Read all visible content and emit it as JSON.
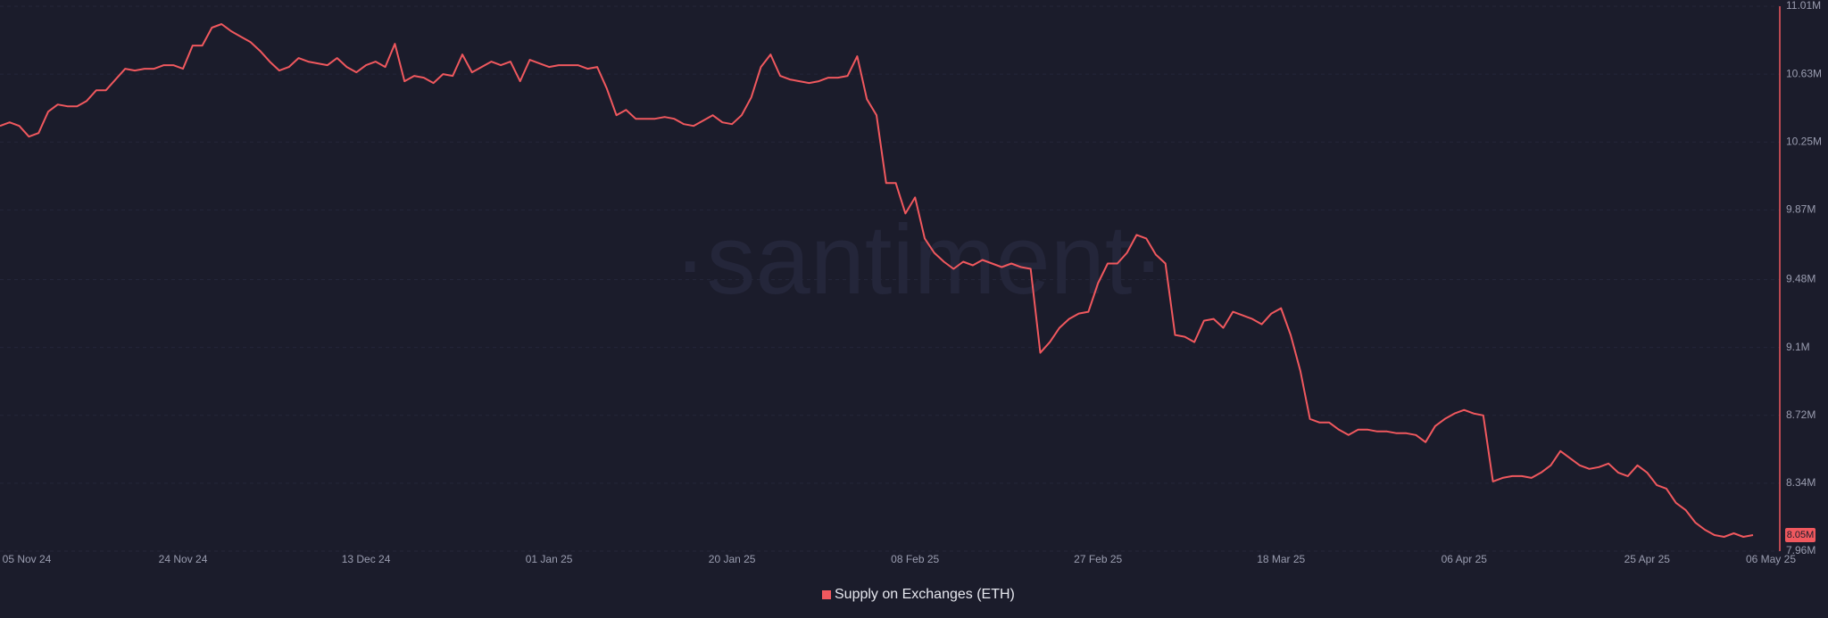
{
  "chart_data": {
    "type": "line",
    "watermark": "·santiment·",
    "categories": [
      "05 Nov 24",
      null,
      null,
      null,
      null,
      null,
      null,
      null,
      null,
      null,
      null,
      null,
      null,
      null,
      null,
      null,
      null,
      null,
      null,
      "24 Nov 24",
      null,
      null,
      null,
      null,
      null,
      null,
      null,
      null,
      null,
      null,
      null,
      null,
      null,
      null,
      null,
      null,
      null,
      null,
      "13 Dec 24",
      null,
      null,
      null,
      null,
      null,
      null,
      null,
      null,
      null,
      null,
      null,
      null,
      null,
      null,
      null,
      null,
      null,
      null,
      "01 Jan 25",
      null,
      null,
      null,
      null,
      null,
      null,
      null,
      null,
      null,
      null,
      null,
      null,
      null,
      null,
      null,
      null,
      null,
      null,
      "20 Jan 25",
      null,
      null,
      null,
      null,
      null,
      null,
      null,
      null,
      null,
      null,
      null,
      null,
      null,
      null,
      null,
      null,
      null,
      null,
      "08 Feb 25",
      null,
      null,
      null,
      null,
      null,
      null,
      null,
      null,
      null,
      null,
      null,
      null,
      null,
      null,
      null,
      null,
      null,
      null,
      "27 Feb 25",
      null,
      null,
      null,
      null,
      null,
      null,
      null,
      null,
      null,
      null,
      null,
      null,
      null,
      null,
      null,
      null,
      null,
      null,
      "18 Mar 25",
      null,
      null,
      null,
      null,
      null,
      null,
      null,
      null,
      null,
      null,
      null,
      null,
      null,
      null,
      null,
      null,
      null,
      null,
      "06 Apr 25",
      null,
      null,
      null,
      null,
      null,
      null,
      null,
      null,
      null,
      null,
      null,
      null,
      null,
      null,
      null,
      null,
      null,
      null,
      "25 Apr 25",
      null,
      null,
      null,
      null,
      null,
      null,
      null,
      null,
      null,
      null,
      "06 May 25"
    ],
    "series": [
      {
        "name": "Supply on Exchanges (ETH)",
        "color": "#f0585e",
        "values": [
          10.34,
          10.36,
          10.34,
          10.28,
          10.3,
          10.42,
          10.46,
          10.45,
          10.45,
          10.48,
          10.54,
          10.54,
          10.6,
          10.66,
          10.65,
          10.66,
          10.66,
          10.68,
          10.68,
          10.66,
          10.79,
          10.79,
          10.89,
          10.91,
          10.87,
          10.84,
          10.81,
          10.76,
          10.7,
          10.65,
          10.67,
          10.72,
          10.7,
          10.69,
          10.68,
          10.72,
          10.67,
          10.64,
          10.68,
          10.7,
          10.67,
          10.8,
          10.59,
          10.62,
          10.61,
          10.58,
          10.63,
          10.62,
          10.74,
          10.64,
          10.67,
          10.7,
          10.68,
          10.7,
          10.59,
          10.71,
          10.69,
          10.67,
          10.68,
          10.68,
          10.68,
          10.66,
          10.67,
          10.55,
          10.4,
          10.43,
          10.38,
          10.38,
          10.38,
          10.39,
          10.38,
          10.35,
          10.34,
          10.37,
          10.4,
          10.36,
          10.35,
          10.4,
          10.5,
          10.67,
          10.74,
          10.62,
          10.6,
          10.59,
          10.58,
          10.59,
          10.61,
          10.61,
          10.62,
          10.73,
          10.49,
          10.4,
          10.02,
          10.02,
          9.85,
          9.94,
          9.71,
          9.63,
          9.58,
          9.54,
          9.58,
          9.56,
          9.59,
          9.57,
          9.55,
          9.57,
          9.55,
          9.54,
          9.07,
          9.13,
          9.21,
          9.26,
          9.29,
          9.3,
          9.46,
          9.57,
          9.57,
          9.63,
          9.73,
          9.71,
          9.62,
          9.57,
          9.17,
          9.16,
          9.13,
          9.25,
          9.26,
          9.21,
          9.3,
          9.28,
          9.26,
          9.23,
          9.29,
          9.32,
          9.17,
          8.97,
          8.7,
          8.68,
          8.68,
          8.64,
          8.61,
          8.64,
          8.64,
          8.63,
          8.63,
          8.62,
          8.62,
          8.61,
          8.57,
          8.66,
          8.7,
          8.73,
          8.75,
          8.73,
          8.72,
          8.35,
          8.37,
          8.38,
          8.38,
          8.37,
          8.4,
          8.44,
          8.52,
          8.48,
          8.44,
          8.42,
          8.43,
          8.45,
          8.4,
          8.38,
          8.44,
          8.4,
          8.33,
          8.31,
          8.23,
          8.19,
          8.12,
          8.08,
          8.05,
          8.04,
          8.06,
          8.04,
          8.05
        ],
        "value_labels": [
          null,
          null,
          null,
          null,
          null,
          null,
          null,
          null,
          null,
          null,
          null,
          null,
          null,
          null,
          null,
          null,
          null,
          null,
          null,
          null,
          null,
          null,
          null,
          null,
          null,
          null,
          null,
          null,
          null,
          null,
          null,
          null,
          null,
          null,
          null,
          null,
          null,
          null,
          null,
          null,
          null,
          null,
          null,
          null,
          null,
          null,
          null,
          null,
          null,
          null,
          null,
          null,
          null,
          null,
          null,
          null,
          null,
          null,
          null,
          null,
          null,
          null,
          null,
          null,
          null,
          null,
          null,
          null,
          null,
          null,
          null,
          null,
          null,
          null,
          null,
          null,
          null,
          null,
          null,
          null,
          null,
          null,
          null,
          null,
          null,
          null,
          null,
          null,
          null,
          null,
          null,
          null,
          null,
          null,
          null,
          null,
          null,
          null,
          null,
          null,
          null,
          null,
          null,
          null,
          null,
          null,
          null,
          null,
          null,
          null,
          null,
          null,
          null,
          null,
          null,
          null,
          null,
          null,
          null,
          null,
          null,
          null,
          null,
          null,
          null,
          null,
          null,
          null,
          null,
          null,
          null,
          null,
          null,
          null,
          null,
          null,
          null,
          null,
          null,
          null,
          null,
          null,
          null,
          null,
          null,
          null,
          null,
          null,
          null,
          null,
          null,
          null,
          null,
          null,
          null,
          null,
          null,
          null,
          null,
          null,
          null,
          null,
          null,
          null,
          null,
          null,
          null,
          null,
          null,
          null,
          null,
          null,
          null,
          null,
          null,
          null,
          null,
          null,
          null,
          null,
          null,
          null,
          "8.05M"
        ]
      }
    ],
    "ylim": [
      7.96,
      11.01
    ],
    "yticks": [
      {
        "value": 11.01,
        "label": "11.01M"
      },
      {
        "value": 10.63,
        "label": "10.63M"
      },
      {
        "value": 10.25,
        "label": "10.25M"
      },
      {
        "value": 9.87,
        "label": "9.87M"
      },
      {
        "value": 9.48,
        "label": "9.48M"
      },
      {
        "value": 9.1,
        "label": "9.1M"
      },
      {
        "value": 8.72,
        "label": "8.72M"
      },
      {
        "value": 8.34,
        "label": "8.34M"
      },
      {
        "value": 7.96,
        "label": "7.96M"
      }
    ],
    "grid": true,
    "legend": "bottom"
  }
}
